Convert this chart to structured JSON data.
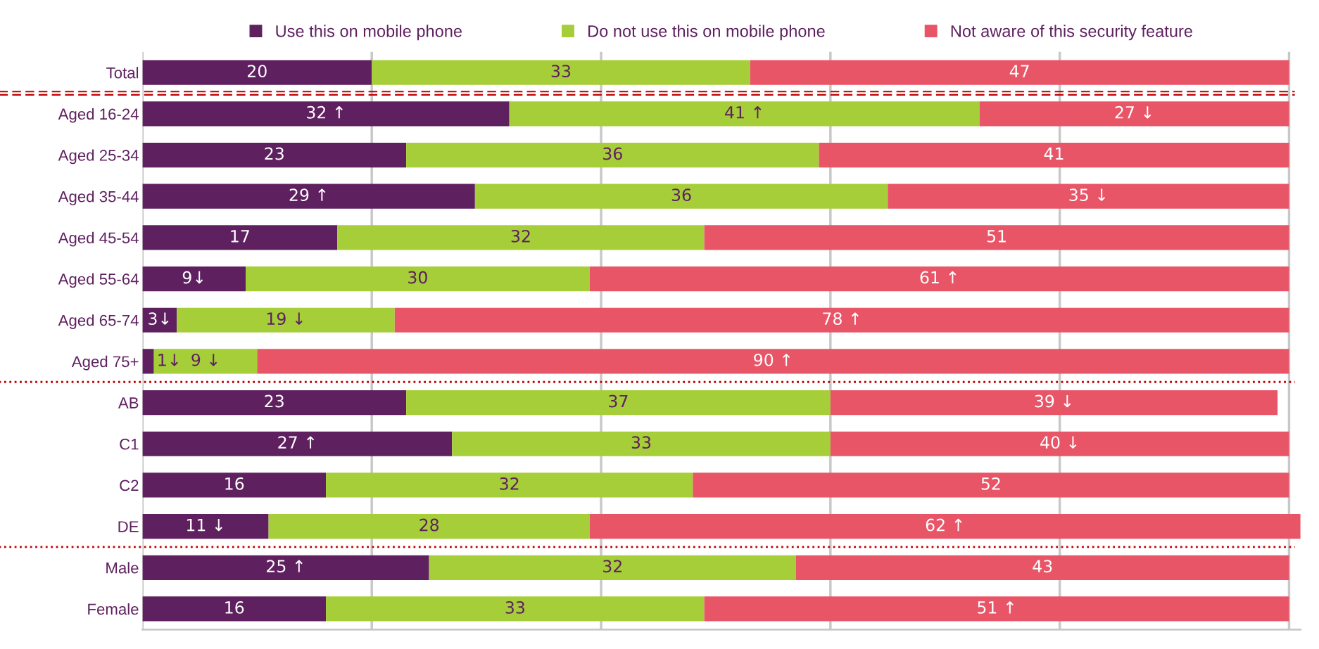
{
  "chart_data": {
    "type": "bar",
    "orientation": "horizontal",
    "stacked": true,
    "grid": "x",
    "legend": "top",
    "tick_labels": "y",
    "categories": [
      "Total",
      "Aged 16-24",
      "Aged 25-34",
      "Aged 35-44",
      "Aged 45-54",
      "Aged 55-64",
      "Aged 65-74",
      "Aged 75+",
      "AB",
      "C1",
      "C2",
      "DE",
      "Male",
      "Female"
    ],
    "xlim": [
      0,
      101
    ],
    "xticks": [
      {
        "value": 0,
        "label": null
      },
      {
        "value": 20,
        "label": null
      },
      {
        "value": 40,
        "label": null
      },
      {
        "value": 60,
        "label": null
      },
      {
        "value": 80,
        "label": null
      },
      {
        "value": 100,
        "label": null
      }
    ],
    "series": [
      {
        "name": "Use this on mobile phone",
        "color": "#5f2060",
        "values": [
          20,
          32,
          23,
          29,
          17,
          9,
          3,
          1,
          23,
          27,
          16,
          11,
          25,
          16
        ],
        "value_labels": [
          "20",
          "32 ↑",
          "23",
          "29 ↑",
          "17",
          "9↓",
          "3↓",
          "1↓",
          "23",
          "27 ↑",
          "16",
          "11 ↓",
          "25 ↑",
          "16"
        ]
      },
      {
        "name": "Do not use this on mobile phone",
        "color": "#a6ce39",
        "values": [
          33,
          41,
          36,
          36,
          32,
          30,
          19,
          9,
          37,
          33,
          32,
          28,
          32,
          33
        ],
        "value_labels": [
          "33",
          "41 ↑",
          "36",
          "36",
          "32",
          "30",
          "19 ↓",
          "9 ↓",
          "37",
          "33",
          "32",
          "28",
          "32",
          "33"
        ]
      },
      {
        "name": "Not aware of this security feature",
        "color": "#e85567",
        "values": [
          47,
          27,
          41,
          35,
          51,
          61,
          78,
          90,
          39,
          40,
          52,
          62,
          43,
          51
        ],
        "value_labels": [
          "47",
          "27 ↓",
          "41",
          "35 ↓",
          "51",
          "61 ↑",
          "78 ↑",
          "90 ↑",
          "39 ↓",
          "40 ↓",
          "52",
          "62 ↑",
          "43",
          "51 ↑"
        ]
      }
    ]
  }
}
